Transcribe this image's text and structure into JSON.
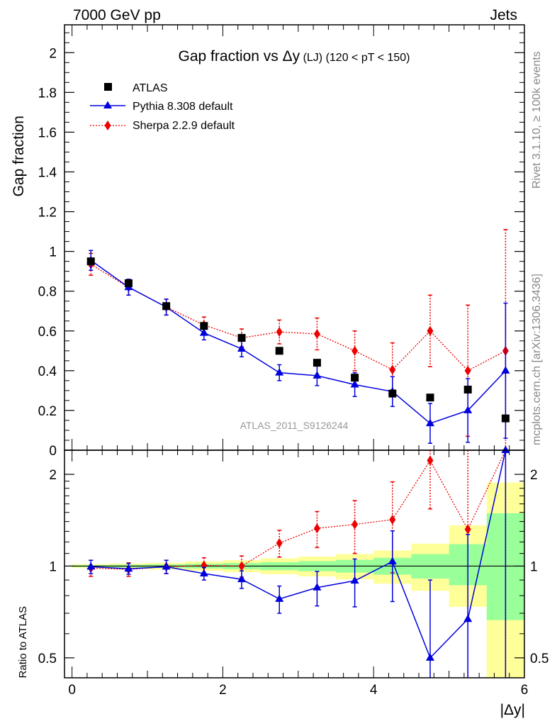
{
  "header": {
    "left": "7000 GeV pp",
    "right": "Jets"
  },
  "side_labels": {
    "rivet": "Rivet 3.1.10, ≥ 100k events",
    "mcplots": "mcplots.cern.ch [arXiv:1306.3436]"
  },
  "chart_data": {
    "type": "scatter",
    "title": {
      "prefix": "Gap fraction vs ",
      "delta_y": "Δy",
      "suffix1": " (LJ)",
      "suffix2": " (120 < pT < 150)"
    },
    "watermark": "ATLAS_2011_S9126244",
    "xlabel": "|Δy|",
    "xlim": [
      -0.1,
      6.0
    ],
    "x_ticks": [
      0,
      2,
      4,
      6
    ],
    "x": [
      0.25,
      0.75,
      1.25,
      1.75,
      2.25,
      2.75,
      3.25,
      3.75,
      4.25,
      4.75,
      5.25,
      5.75
    ],
    "main_panel": {
      "ylabel": "Gap fraction",
      "ylim": [
        0,
        2.14
      ],
      "y_ticks": [
        0,
        0.2,
        0.4,
        0.6,
        0.8,
        1,
        1.2,
        1.4,
        1.6,
        1.8,
        2
      ],
      "y_tick_labels": [
        "0",
        "0.2",
        "0.4",
        "0.6",
        "0.8",
        "1",
        "1.2",
        "1.4",
        "1.6",
        "1.8",
        "2"
      ],
      "series": [
        {
          "name": "ATLAS",
          "color": "#000000",
          "marker": "square",
          "line": "none",
          "values": [
            0.95,
            0.84,
            0.725,
            0.625,
            0.565,
            0.5,
            0.44,
            0.365,
            0.285,
            0.265,
            0.305,
            0.16
          ],
          "err": [
            0.01,
            0.01,
            0.01,
            0.01,
            0.01,
            0.01,
            0.01,
            0.01,
            0.01,
            0.01,
            0.01,
            0.01
          ]
        },
        {
          "name": "Pythia 8.308 default",
          "color": "#0000dd",
          "marker": "triangle",
          "line": "solid",
          "values": [
            0.955,
            0.82,
            0.72,
            0.59,
            0.51,
            0.39,
            0.375,
            0.33,
            0.295,
            0.135,
            0.2,
            0.4
          ],
          "err": [
            0.05,
            0.04,
            0.04,
            0.035,
            0.04,
            0.04,
            0.05,
            0.06,
            0.075,
            0.1,
            0.16,
            0.34
          ]
        },
        {
          "name": "Sherpa 2.2.9 default",
          "color": "#ee0000",
          "marker": "diamond",
          "line": "dotted",
          "values": [
            0.935,
            0.82,
            0.72,
            0.63,
            0.565,
            0.595,
            0.585,
            0.5,
            0.405,
            0.6,
            0.4,
            0.5
          ],
          "err": [
            0.055,
            0.04,
            0.04,
            0.04,
            0.045,
            0.06,
            0.08,
            0.1,
            0.135,
            0.18,
            0.33,
            0.61
          ]
        }
      ]
    },
    "ratio_panel": {
      "ylabel": "Ratio to ATLAS",
      "scale": "log",
      "ylim": [
        0.43,
        2.4
      ],
      "y_ticks": [
        0.5,
        1,
        2
      ],
      "y_tick_labels": [
        "0.5",
        "1",
        "2"
      ],
      "bands": {
        "x_edges": [
          0,
          0.5,
          1,
          1.5,
          2,
          2.5,
          3,
          3.5,
          4,
          4.5,
          5,
          5.5,
          6
        ],
        "yellow_color": "#ffff99",
        "green_color": "#99ff99",
        "yellow_low": [
          0.985,
          0.98,
          0.975,
          0.965,
          0.955,
          0.94,
          0.925,
          0.905,
          0.875,
          0.83,
          0.735,
          0.3
        ],
        "yellow_high": [
          1.015,
          1.02,
          1.025,
          1.035,
          1.045,
          1.06,
          1.075,
          1.095,
          1.125,
          1.185,
          1.36,
          1.88
        ],
        "green_low": [
          0.993,
          0.99,
          0.987,
          0.982,
          0.977,
          0.97,
          0.962,
          0.952,
          0.937,
          0.91,
          0.865,
          0.665
        ],
        "green_high": [
          1.007,
          1.01,
          1.013,
          1.018,
          1.023,
          1.03,
          1.038,
          1.048,
          1.065,
          1.095,
          1.18,
          1.49
        ]
      },
      "series": [
        {
          "name": "Pythia 8.308 default",
          "color": "#0000dd",
          "marker": "triangle",
          "line": "solid",
          "values": [
            0.995,
            0.98,
            0.995,
            0.945,
            0.905,
            0.78,
            0.85,
            0.895,
            1.035,
            0.5,
            0.67,
            2.4
          ],
          "err": [
            0.05,
            0.04,
            0.05,
            0.045,
            0.06,
            0.08,
            0.11,
            0.16,
            0.27,
            0.4,
            0.6,
            2.1
          ]
        },
        {
          "name": "Sherpa 2.2.9 default",
          "color": "#ee0000",
          "marker": "diamond",
          "line": "dotted",
          "values": [
            0.985,
            0.975,
            0.995,
            1.005,
            1.0,
            1.19,
            1.33,
            1.37,
            1.42,
            2.22,
            1.32,
            3.1
          ],
          "err": [
            0.06,
            0.05,
            0.05,
            0.06,
            0.08,
            0.12,
            0.18,
            0.27,
            0.47,
            0.68,
            1.08,
            3.8
          ]
        }
      ],
      "reference_line": 1
    }
  }
}
